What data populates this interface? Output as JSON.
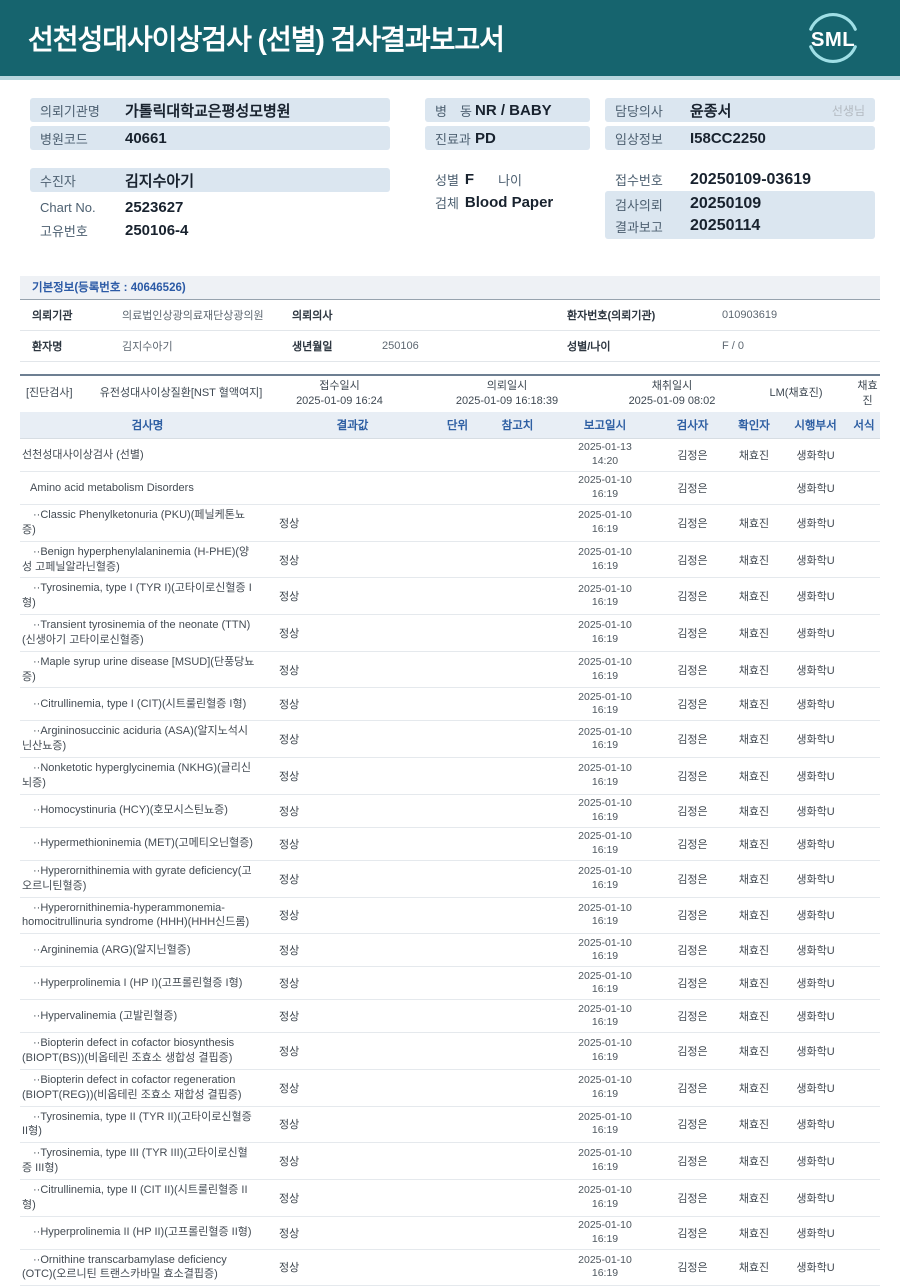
{
  "header": {
    "title": "선천성대사이상검사 (선별) 검사결과보고서",
    "logo": "SML",
    "teal": "#16646e",
    "arc_color": "#9fdfe6"
  },
  "patient": {
    "org_label": "의뢰기관명",
    "org": "가톨릭대학교은평성모병원",
    "hospital_code_label": "병원코드",
    "hospital_code": "40661",
    "patient_label": "수진자",
    "patient_name": "김지수아기",
    "chart_label": "Chart No.",
    "chart_no": "2523627",
    "unique_label": "고유번호",
    "unique_no": "250106-4",
    "ward_label": "병　동",
    "ward": "NR / BABY",
    "dept_label": "진료과",
    "dept": "PD",
    "sex_label": "성별",
    "sex": "F",
    "age_label": "나이",
    "age": "",
    "specimen_label": "검체",
    "specimen": "Blood Paper",
    "doctor_label": "담당의사",
    "doctor": "윤종서",
    "doctor_suffix": "선생님",
    "clinical_label": "임상정보",
    "clinical": "I58CC2250",
    "receipt_label": "접수번호",
    "receipt_no": "20250109-03619",
    "request_label": "검사의뢰",
    "request_date": "20250109",
    "report_label": "결과보고",
    "report_date": "20250114"
  },
  "basic_info": {
    "title": "기본정보(등록번호 : 40646526)",
    "rows": [
      [
        {
          "label": "의뢰기관",
          "value": "의료법인상광의료재단상광의원"
        },
        {
          "label": "의뢰의사",
          "value": ""
        },
        {
          "label": "환자번호(의뢰기관)",
          "value": "010903619"
        }
      ],
      [
        {
          "label": "환자명",
          "value": "김지수아기"
        },
        {
          "label": "생년월일",
          "value": "250106"
        },
        {
          "label": "성별/나이",
          "value": "F / 0"
        }
      ]
    ]
  },
  "diagnosis": {
    "category": "[진단검사]",
    "test_name": "유전성대사이상질환[NST 혈액여지]",
    "received_label": "접수일시",
    "received": "2025-01-09 16:24",
    "requested_label": "의뢰일시",
    "requested": "2025-01-09 16:18:39",
    "collected_label": "채취일시",
    "collected": "2025-01-09 08:02",
    "lm": "LM(채효진)",
    "collector": "채효진"
  },
  "results_table": {
    "headers": [
      "검사명",
      "결과값",
      "단위",
      "참고치",
      "보고일시",
      "검사자",
      "확인자",
      "시행부서",
      "서식"
    ],
    "rows": [
      {
        "name": "선천성대사이상검사 (선별)",
        "result": "",
        "date": "2025-01-13",
        "time": "14:20",
        "tester": "김정은",
        "confirmer": "채효진",
        "dept": "생화학U",
        "indent": 0
      },
      {
        "name": "Amino acid metabolism Disorders",
        "result": "",
        "date": "2025-01-10",
        "time": "16:19",
        "tester": "김정은",
        "confirmer": "",
        "dept": "생화학U",
        "indent": 1
      },
      {
        "name": "··Classic Phenylketonuria (PKU)(페닐케톤뇨증)",
        "result": "정상",
        "date": "2025-01-10",
        "time": "16:19",
        "tester": "김정은",
        "confirmer": "채효진",
        "dept": "생화학U",
        "indent": 2
      },
      {
        "name": "··Benign hyperphenylalaninemia (H-PHE)(양성 고페닐알라닌혈증)",
        "result": "정상",
        "date": "2025-01-10",
        "time": "16:19",
        "tester": "김정은",
        "confirmer": "채효진",
        "dept": "생화학U",
        "indent": 2
      },
      {
        "name": "··Tyrosinemia, type I (TYR I)(고타이로신혈증 I형)",
        "result": "정상",
        "date": "2025-01-10",
        "time": "16:19",
        "tester": "김정은",
        "confirmer": "채효진",
        "dept": "생화학U",
        "indent": 2
      },
      {
        "name": "··Transient tyrosinemia of the neonate (TTN)(신생아기 고타이로신혈증)",
        "result": "정상",
        "date": "2025-01-10",
        "time": "16:19",
        "tester": "김정은",
        "confirmer": "채효진",
        "dept": "생화학U",
        "indent": 2
      },
      {
        "name": "··Maple syrup urine disease [MSUD](단풍당뇨증)",
        "result": "정상",
        "date": "2025-01-10",
        "time": "16:19",
        "tester": "김정은",
        "confirmer": "채효진",
        "dept": "생화학U",
        "indent": 2
      },
      {
        "name": "··Citrullinemia, type I (CIT)(시트룰린혈증 I형)",
        "result": "정상",
        "date": "2025-01-10",
        "time": "16:19",
        "tester": "김정은",
        "confirmer": "채효진",
        "dept": "생화학U",
        "indent": 2
      },
      {
        "name": "··Argininosuccinic aciduria (ASA)(알지노석시닌산뇨증)",
        "result": "정상",
        "date": "2025-01-10",
        "time": "16:19",
        "tester": "김정은",
        "confirmer": "채효진",
        "dept": "생화학U",
        "indent": 2
      },
      {
        "name": "··Nonketotic hyperglycinemia (NKHG)(글리신뇌증)",
        "result": "정상",
        "date": "2025-01-10",
        "time": "16:19",
        "tester": "김정은",
        "confirmer": "채효진",
        "dept": "생화학U",
        "indent": 2
      },
      {
        "name": "··Homocystinuria (HCY)(호모시스틴뇨증)",
        "result": "정상",
        "date": "2025-01-10",
        "time": "16:19",
        "tester": "김정은",
        "confirmer": "채효진",
        "dept": "생화학U",
        "indent": 2
      },
      {
        "name": "··Hypermethioninemia (MET)(고메티오닌혈증)",
        "result": "정상",
        "date": "2025-01-10",
        "time": "16:19",
        "tester": "김정은",
        "confirmer": "채효진",
        "dept": "생화학U",
        "indent": 2
      },
      {
        "name": "··Hyperornithinemia with gyrate deficiency(고오르니틴혈증)",
        "result": "정상",
        "date": "2025-01-10",
        "time": "16:19",
        "tester": "김정은",
        "confirmer": "채효진",
        "dept": "생화학U",
        "indent": 2
      },
      {
        "name": "··Hyperornithinemia-hyperammonemia-homocitrullinuria syndrome (HHH)(HHH신드롬)",
        "result": "정상",
        "date": "2025-01-10",
        "time": "16:19",
        "tester": "김정은",
        "confirmer": "채효진",
        "dept": "생화학U",
        "indent": 2
      },
      {
        "name": "··Argininemia (ARG)(알지닌혈증)",
        "result": "정상",
        "date": "2025-01-10",
        "time": "16:19",
        "tester": "김정은",
        "confirmer": "채효진",
        "dept": "생화학U",
        "indent": 2
      },
      {
        "name": "··Hyperprolinemia I (HP I)(고프롤린혈증 I형)",
        "result": "정상",
        "date": "2025-01-10",
        "time": "16:19",
        "tester": "김정은",
        "confirmer": "채효진",
        "dept": "생화학U",
        "indent": 2
      },
      {
        "name": "··Hypervalinemia (고발린혈증)",
        "result": "정상",
        "date": "2025-01-10",
        "time": "16:19",
        "tester": "김정은",
        "confirmer": "채효진",
        "dept": "생화학U",
        "indent": 2
      },
      {
        "name": "··Biopterin defect in cofactor biosynthesis (BIOPT(BS))(비옵테린 조효소 생합성 결핍증)",
        "result": "정상",
        "date": "2025-01-10",
        "time": "16:19",
        "tester": "김정은",
        "confirmer": "채효진",
        "dept": "생화학U",
        "indent": 2
      },
      {
        "name": "··Biopterin defect in cofactor regeneration (BIOPT(REG))(비옵테린 조효소 재합성 결핍증)",
        "result": "정상",
        "date": "2025-01-10",
        "time": "16:19",
        "tester": "김정은",
        "confirmer": "채효진",
        "dept": "생화학U",
        "indent": 2
      },
      {
        "name": "··Tyrosinemia, type II (TYR II)(고타이로신혈증 II형)",
        "result": "정상",
        "date": "2025-01-10",
        "time": "16:19",
        "tester": "김정은",
        "confirmer": "채효진",
        "dept": "생화학U",
        "indent": 2
      },
      {
        "name": "··Tyrosinemia, type III (TYR III)(고타이로신혈증 III형)",
        "result": "정상",
        "date": "2025-01-10",
        "time": "16:19",
        "tester": "김정은",
        "confirmer": "채효진",
        "dept": "생화학U",
        "indent": 2
      },
      {
        "name": "··Citrullinemia, type II (CIT II)(시트룰린혈증 II형)",
        "result": "정상",
        "date": "2025-01-10",
        "time": "16:19",
        "tester": "김정은",
        "confirmer": "채효진",
        "dept": "생화학U",
        "indent": 2
      },
      {
        "name": "··Hyperprolinemia II (HP II)(고프롤린혈증 II형)",
        "result": "정상",
        "date": "2025-01-10",
        "time": "16:19",
        "tester": "김정은",
        "confirmer": "채효진",
        "dept": "생화학U",
        "indent": 2
      },
      {
        "name": "··Ornithine transcarbamylase deficiency (OTC)(오르니틴 트랜스카바밀 효소결핍증)",
        "result": "정상",
        "date": "2025-01-10",
        "time": "16:19",
        "tester": "김정은",
        "confirmer": "채효진",
        "dept": "생화학U",
        "indent": 2
      }
    ]
  }
}
